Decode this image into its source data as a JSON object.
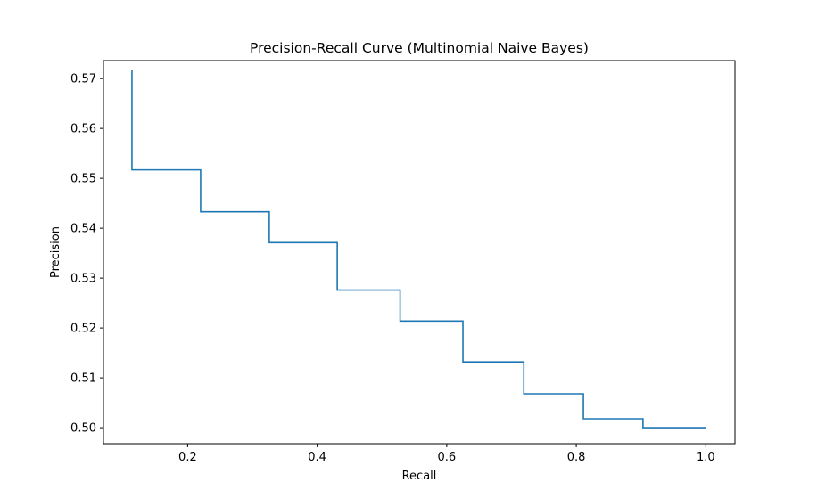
{
  "chart_data": {
    "type": "line",
    "drawstyle": "steps-post",
    "title": "Precision-Recall Curve (Multinomial Naive Bayes)",
    "xlabel": "Recall",
    "ylabel": "Precision",
    "xlim": [
      0.07,
      1.045
    ],
    "ylim": [
      0.4968,
      0.5736
    ],
    "xticks": [
      0.2,
      0.4,
      0.6,
      0.8,
      1.0
    ],
    "xtick_labels": [
      "0.2",
      "0.4",
      "0.6",
      "0.8",
      "1.0"
    ],
    "yticks": [
      0.5,
      0.51,
      0.52,
      0.53,
      0.54,
      0.55,
      0.56,
      0.57
    ],
    "ytick_labels": [
      "0.50",
      "0.51",
      "0.52",
      "0.53",
      "0.54",
      "0.55",
      "0.56",
      "0.57"
    ],
    "grid": false,
    "series": [
      {
        "color": "#1f77b4",
        "x": [
          0.114,
          0.114,
          0.22,
          0.326,
          0.431,
          0.528,
          0.625,
          0.719,
          0.811,
          0.903,
          1.0
        ],
        "y": [
          0.5717,
          0.5517,
          0.5433,
          0.5371,
          0.5276,
          0.5214,
          0.5132,
          0.5068,
          0.5018,
          0.5,
          0.5
        ]
      }
    ]
  }
}
